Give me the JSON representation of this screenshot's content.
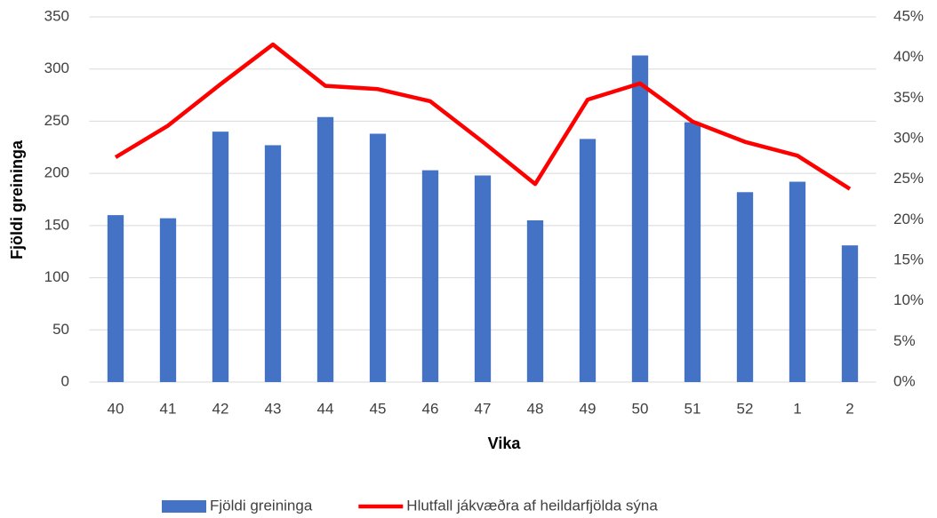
{
  "chart_data": {
    "type": "combo",
    "x_label": "Vika",
    "y_label": "Fjöldi greininga",
    "categories": [
      "40",
      "41",
      "42",
      "43",
      "44",
      "45",
      "46",
      "47",
      "48",
      "49",
      "50",
      "51",
      "52",
      "1",
      "2"
    ],
    "series": [
      {
        "name": "Fjöldi greininga",
        "type": "bar",
        "color": "#4472c4",
        "values": [
          160,
          157,
          240,
          227,
          254,
          238,
          203,
          198,
          155,
          233,
          313,
          249,
          182,
          192,
          131
        ]
      },
      {
        "name": "Hlutfall jákvæðra af heildarfjölda sýna",
        "type": "line",
        "color": "#ff0000",
        "axis": "y2",
        "values": [
          27.7,
          31.6,
          36.7,
          41.6,
          36.5,
          36.1,
          34.6,
          29.6,
          24.4,
          34.8,
          36.8,
          32.1,
          29.6,
          27.9,
          23.8
        ]
      }
    ],
    "ylim": [
      0,
      350
    ],
    "yticks": [
      0,
      50,
      100,
      150,
      200,
      250,
      300,
      350
    ],
    "y2lim": [
      0,
      45
    ],
    "y2ticks": [
      {
        "value": 0,
        "label": "0%"
      },
      {
        "value": 5,
        "label": "5%"
      },
      {
        "value": 10,
        "label": "10%"
      },
      {
        "value": 15,
        "label": "15%"
      },
      {
        "value": 20,
        "label": "20%"
      },
      {
        "value": 25,
        "label": "25%"
      },
      {
        "value": 30,
        "label": "30%"
      },
      {
        "value": 35,
        "label": "35%"
      },
      {
        "value": 40,
        "label": "40%"
      },
      {
        "value": 45,
        "label": "45%"
      }
    ],
    "grid": true,
    "legend": "bottom"
  }
}
